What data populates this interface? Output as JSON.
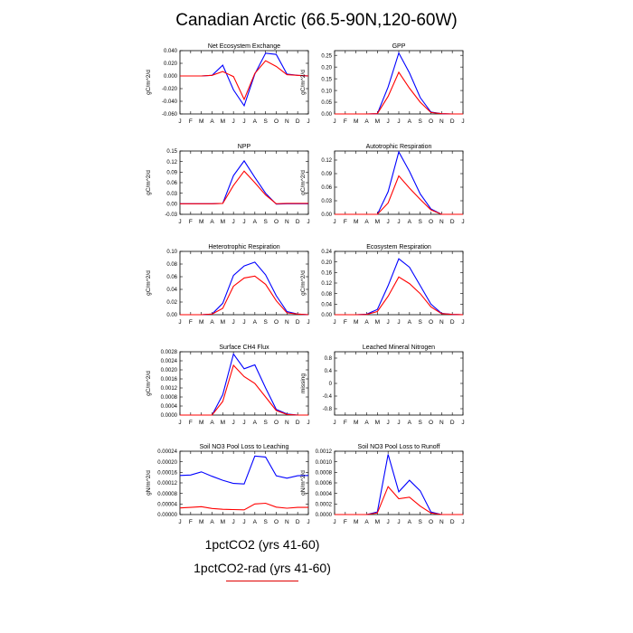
{
  "title": "Canadian Arctic (66.5-90N,120-60W)",
  "legend": {
    "entries": [
      {
        "label": "1pctCO2 (yrs 41-60)",
        "color": "#0000ff"
      },
      {
        "label": "1pctCO2-rad (yrs 41-60)",
        "color": "#ff0000"
      }
    ]
  },
  "chart_data": [
    {
      "type": "line",
      "title": "Net Ecosystem Exchange",
      "ylabel": "gC/m^2/d",
      "categories": [
        "J",
        "F",
        "M",
        "A",
        "M",
        "J",
        "J",
        "A",
        "S",
        "O",
        "N",
        "D",
        "J"
      ],
      "ylim": [
        -0.06,
        0.04
      ],
      "yticks": [
        "-0.060",
        "-0.040",
        "-0.020",
        "0.000",
        "0.020",
        "0.040"
      ],
      "series": [
        {
          "name": "1pctCO2 (yrs 41-60)",
          "color": "#0000ff",
          "values": [
            0,
            0,
            0,
            0.001,
            0.017,
            -0.022,
            -0.047,
            0.003,
            0.036,
            0.034,
            0.003,
            0.001,
            0
          ]
        },
        {
          "name": "1pctCO2-rad (yrs 41-60)",
          "color": "#ff0000",
          "values": [
            0,
            0,
            0,
            0.001,
            0.007,
            -0.001,
            -0.037,
            0.004,
            0.024,
            0.015,
            0.002,
            0.001,
            0
          ]
        }
      ]
    },
    {
      "type": "line",
      "title": "GPP",
      "ylabel": "gC/m^2/d",
      "categories": [
        "J",
        "F",
        "M",
        "A",
        "M",
        "J",
        "J",
        "A",
        "S",
        "O",
        "N",
        "D",
        "J"
      ],
      "ylim": [
        0,
        0.27
      ],
      "yticks": [
        "0.00",
        "0.05",
        "0.10",
        "0.15",
        "0.20",
        "0.25"
      ],
      "series": [
        {
          "name": "1pctCO2 (yrs 41-60)",
          "color": "#0000ff",
          "values": [
            0,
            0,
            0,
            0,
            0.001,
            0.115,
            0.26,
            0.175,
            0.07,
            0.008,
            0.001,
            0,
            0
          ]
        },
        {
          "name": "1pctCO2-rad (yrs 41-60)",
          "color": "#ff0000",
          "values": [
            0,
            0,
            0,
            0,
            0.001,
            0.075,
            0.178,
            0.11,
            0.05,
            0.006,
            0.001,
            0,
            0
          ]
        }
      ]
    },
    {
      "type": "line",
      "title": "NPP",
      "ylabel": "gC/m^2/d",
      "categories": [
        "J",
        "F",
        "M",
        "A",
        "M",
        "J",
        "J",
        "A",
        "S",
        "O",
        "N",
        "D",
        "J"
      ],
      "ylim": [
        -0.03,
        0.15
      ],
      "yticks": [
        "-0.03",
        "0.00",
        "0.03",
        "0.06",
        "0.09",
        "0.12",
        "0.15"
      ],
      "series": [
        {
          "name": "1pctCO2 (yrs 41-60)",
          "color": "#0000ff",
          "values": [
            0,
            0,
            0,
            0,
            0.001,
            0.08,
            0.122,
            0.075,
            0.03,
            -0.001,
            0,
            0,
            0
          ]
        },
        {
          "name": "1pctCO2-rad (yrs 41-60)",
          "color": "#ff0000",
          "values": [
            0,
            0,
            0,
            0,
            0.001,
            0.052,
            0.093,
            0.06,
            0.025,
            0,
            0.001,
            0.001,
            0.001
          ]
        }
      ]
    },
    {
      "type": "line",
      "title": "Autotrophic Respiration",
      "ylabel": "gC/m^2/d",
      "categories": [
        "J",
        "F",
        "M",
        "A",
        "M",
        "J",
        "J",
        "A",
        "S",
        "O",
        "N",
        "D",
        "J"
      ],
      "ylim": [
        0,
        0.14
      ],
      "yticks": [
        "0.00",
        "0.03",
        "0.06",
        "0.09",
        "0.12"
      ],
      "series": [
        {
          "name": "1pctCO2 (yrs 41-60)",
          "color": "#0000ff",
          "values": [
            0,
            0,
            0,
            0,
            0,
            0.05,
            0.138,
            0.095,
            0.045,
            0.012,
            0,
            0,
            0
          ]
        },
        {
          "name": "1pctCO2-rad (yrs 41-60)",
          "color": "#ff0000",
          "values": [
            0,
            0,
            0,
            0,
            0,
            0.025,
            0.085,
            0.058,
            0.033,
            0.01,
            0,
            0,
            0
          ]
        }
      ]
    },
    {
      "type": "line",
      "title": "Heterotrophic Respiration",
      "ylabel": "gC/m^2/d",
      "categories": [
        "J",
        "F",
        "M",
        "A",
        "M",
        "J",
        "J",
        "A",
        "S",
        "O",
        "N",
        "D",
        "J"
      ],
      "ylim": [
        0,
        0.1
      ],
      "yticks": [
        "0.00",
        "0.02",
        "0.04",
        "0.06",
        "0.08",
        "0.10"
      ],
      "series": [
        {
          "name": "1pctCO2 (yrs 41-60)",
          "color": "#0000ff",
          "values": [
            0,
            0,
            0,
            0.001,
            0.018,
            0.062,
            0.077,
            0.083,
            0.063,
            0.03,
            0.005,
            0.001,
            0
          ]
        },
        {
          "name": "1pctCO2-rad (yrs 41-60)",
          "color": "#ff0000",
          "values": [
            0,
            0,
            0,
            0.001,
            0.01,
            0.045,
            0.058,
            0.061,
            0.048,
            0.022,
            0.003,
            0.001,
            0
          ]
        }
      ]
    },
    {
      "type": "line",
      "title": "Ecosystem Respiration",
      "ylabel": "gC/m^2/d",
      "categories": [
        "J",
        "F",
        "M",
        "A",
        "M",
        "J",
        "J",
        "A",
        "S",
        "O",
        "N",
        "D",
        "J"
      ],
      "ylim": [
        0,
        0.24
      ],
      "yticks": [
        "0.00",
        "0.04",
        "0.08",
        "0.12",
        "0.16",
        "0.20",
        "0.24"
      ],
      "series": [
        {
          "name": "1pctCO2 (yrs 41-60)",
          "color": "#0000ff",
          "values": [
            0,
            0,
            0,
            0.002,
            0.02,
            0.11,
            0.212,
            0.18,
            0.11,
            0.04,
            0.005,
            0.001,
            0
          ]
        },
        {
          "name": "1pctCO2-rad (yrs 41-60)",
          "color": "#ff0000",
          "values": [
            0,
            0,
            0,
            0.001,
            0.012,
            0.07,
            0.143,
            0.118,
            0.08,
            0.03,
            0.004,
            0.001,
            0
          ]
        }
      ]
    },
    {
      "type": "line",
      "title": "Surface CH4 Flux",
      "ylabel": "gC/m^2/d",
      "categories": [
        "J",
        "F",
        "M",
        "A",
        "M",
        "J",
        "J",
        "A",
        "S",
        "O",
        "N",
        "D",
        "J"
      ],
      "ylim": [
        0,
        0.0028
      ],
      "yticks": [
        "0.0000",
        "0.0004",
        "0.0008",
        "0.0012",
        "0.0016",
        "0.0020",
        "0.0024",
        "0.0028"
      ],
      "series": [
        {
          "name": "1pctCO2 (yrs 41-60)",
          "color": "#0000ff",
          "values": [
            0,
            0,
            0,
            0,
            0.0009,
            0.0027,
            0.00205,
            0.00222,
            0.0012,
            0.00025,
            5e-05,
            0,
            0
          ]
        },
        {
          "name": "1pctCO2-rad (yrs 41-60)",
          "color": "#ff0000",
          "values": [
            0,
            0,
            0,
            0,
            0.0006,
            0.0022,
            0.0017,
            0.0014,
            0.0008,
            0.0002,
            3e-05,
            0,
            0
          ]
        }
      ]
    },
    {
      "type": "line",
      "title": "Leached Mineral Nitrogen",
      "ylabel": "missing",
      "categories": [
        "J",
        "F",
        "M",
        "A",
        "M",
        "J",
        "J",
        "A",
        "S",
        "O",
        "N",
        "D",
        "J"
      ],
      "ylim": [
        -1,
        1
      ],
      "yticks": [
        "-0.8",
        "-0.4",
        "0",
        "0.4",
        "0.8"
      ],
      "ytick_values": [
        -0.8,
        -0.4,
        0,
        0.4,
        0.8
      ],
      "series": []
    },
    {
      "type": "line",
      "title": "Soil NO3 Pool Loss to Leaching",
      "ylabel": "gN/m^2/d",
      "categories": [
        "J",
        "F",
        "M",
        "A",
        "M",
        "J",
        "J",
        "A",
        "S",
        "O",
        "N",
        "D",
        "J"
      ],
      "ylim": [
        0,
        0.00024
      ],
      "yticks": [
        "0.00000",
        "0.00004",
        "0.00008",
        "0.00012",
        "0.00016",
        "0.00020",
        "0.00024"
      ],
      "series": [
        {
          "name": "1pctCO2 (yrs 41-60)",
          "color": "#0000ff",
          "values": [
            0.000148,
            0.00015,
            0.000162,
            0.000145,
            0.00013,
            0.000118,
            0.000116,
            0.000222,
            0.000218,
            0.000147,
            0.000138,
            0.000147,
            0.000148
          ]
        },
        {
          "name": "1pctCO2-rad (yrs 41-60)",
          "color": "#ff0000",
          "values": [
            2.5e-05,
            2.7e-05,
            3e-05,
            2.3e-05,
            2e-05,
            1.9e-05,
            1.8e-05,
            4e-05,
            4.3e-05,
            2.8e-05,
            2.4e-05,
            2.7e-05,
            2.7e-05
          ]
        }
      ]
    },
    {
      "type": "line",
      "title": "Soil NO3 Pool Loss to Runoff",
      "ylabel": "gN/m^2/d",
      "categories": [
        "J",
        "F",
        "M",
        "A",
        "M",
        "J",
        "J",
        "A",
        "S",
        "O",
        "N",
        "D",
        "J"
      ],
      "ylim": [
        0,
        0.0012
      ],
      "yticks": [
        "0.0000",
        "0.0002",
        "0.0004",
        "0.0006",
        "0.0008",
        "0.0010",
        "0.0012"
      ],
      "series": [
        {
          "name": "1pctCO2 (yrs 41-60)",
          "color": "#0000ff",
          "values": [
            0,
            0,
            0,
            0,
            5e-05,
            0.00114,
            0.00043,
            0.00065,
            0.00045,
            5e-05,
            0,
            0,
            0
          ]
        },
        {
          "name": "1pctCO2-rad (yrs 41-60)",
          "color": "#ff0000",
          "values": [
            0,
            0,
            0,
            0,
            3e-05,
            0.00053,
            0.0003,
            0.00033,
            0.00016,
            3e-05,
            0,
            0,
            0
          ]
        }
      ]
    }
  ]
}
